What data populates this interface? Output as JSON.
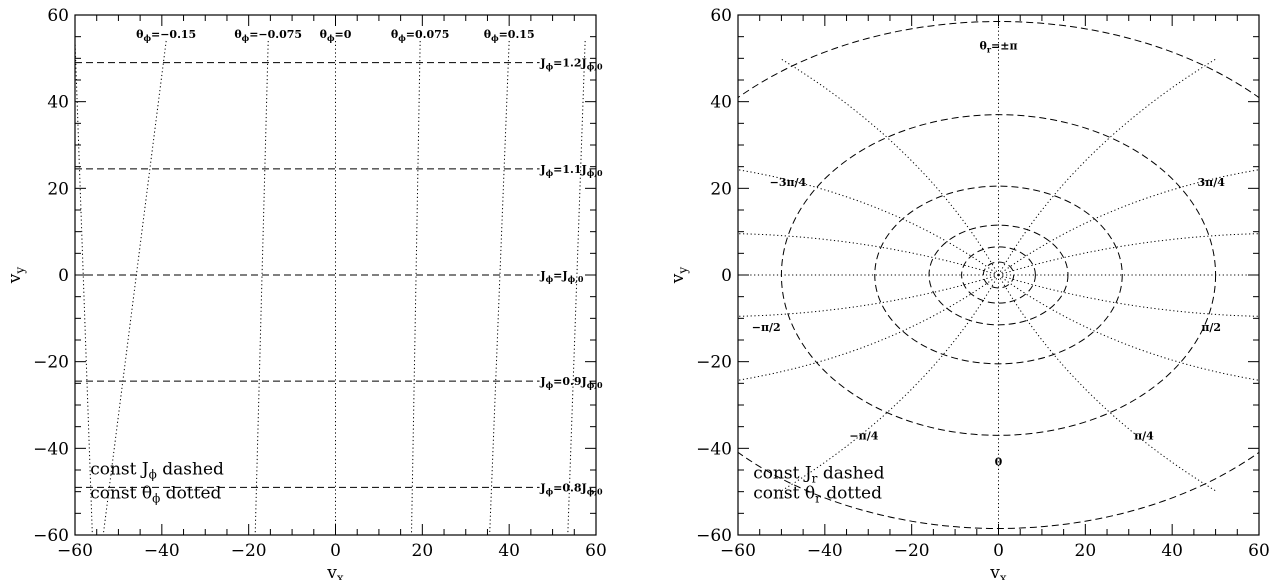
{
  "chart_data": [
    {
      "type": "line",
      "panel": "left",
      "title": "",
      "xlabel_main": "v",
      "xlabel_sub": "x",
      "ylabel_main": "v",
      "ylabel_sub": "y",
      "xlim": [
        -60,
        60
      ],
      "ylim": [
        -60,
        60
      ],
      "xticks": [
        -60,
        -40,
        -20,
        0,
        20,
        40,
        60
      ],
      "yticks": [
        -60,
        -40,
        -20,
        0,
        20,
        40,
        60
      ],
      "grid": false,
      "dashed_series": [
        {
          "label_main": "J",
          "label_sub": "ϕ",
          "label_mid": "=1.2J",
          "label_sub2": "ϕ,0",
          "y": 49
        },
        {
          "label_main": "J",
          "label_sub": "ϕ",
          "label_mid": "=1.1J",
          "label_sub2": "ϕ,0",
          "y": 24.5
        },
        {
          "label_main": "J",
          "label_sub": "ϕ",
          "label_mid": "=J",
          "label_sub2": "ϕ,0",
          "y": 0
        },
        {
          "label_main": "J",
          "label_sub": "ϕ",
          "label_mid": "=0.9J",
          "label_sub2": "ϕ,0",
          "y": -24.5
        },
        {
          "label_main": "J",
          "label_sub": "ϕ",
          "label_mid": "=0.8J",
          "label_sub2": "ϕ,0",
          "y": -49
        }
      ],
      "dotted_series": [
        {
          "label_main": "θ",
          "label_sub": "ϕ",
          "label_mid": "=−0.15",
          "x_top": -39,
          "x_bottom": -53.5
        },
        {
          "label_main": "θ",
          "label_sub": "ϕ",
          "label_mid": "=−0.075",
          "x_top": -15.5,
          "x_bottom": -18.5
        },
        {
          "label_main": "θ",
          "label_sub": "ϕ",
          "label_mid": "=0",
          "x_top": 0,
          "x_bottom": 0
        },
        {
          "label_main": "θ",
          "label_sub": "ϕ",
          "label_mid": "=0.075",
          "x_top": 19.5,
          "x_bottom": 17.5
        },
        {
          "label_main": "θ",
          "label_sub": "ϕ",
          "label_mid": "=0.15",
          "x_top": 40,
          "x_bottom": 35.5
        },
        {
          "label_main": "",
          "label_sub": "",
          "label_mid": "",
          "x_top": -60,
          "x_bottom": -56
        },
        {
          "label_main": "",
          "label_sub": "",
          "label_mid": "",
          "x_top": 57.5,
          "x_bottom": 53.5
        }
      ],
      "legend": [
        {
          "text_main": "const J",
          "text_sub": "ϕ",
          "text_rest": "dashed"
        },
        {
          "text_main": "const θ",
          "text_sub": "ϕ",
          "text_rest": "dotted"
        }
      ]
    },
    {
      "type": "line",
      "panel": "right",
      "title": "",
      "xlabel_main": "v",
      "xlabel_sub": "x",
      "ylabel_main": "v",
      "ylabel_sub": "y",
      "xlim": [
        -60,
        60
      ],
      "ylim": [
        -60,
        60
      ],
      "xticks": [
        -60,
        -40,
        -20,
        0,
        20,
        40,
        60
      ],
      "yticks": [
        -60,
        -40,
        -20,
        0,
        20,
        40,
        60
      ],
      "grid": false,
      "dashed_ellipses": [
        {
          "a": 3.5,
          "b": 3.0
        },
        {
          "a": 8.5,
          "b": 6.5
        },
        {
          "a": 16,
          "b": 11.5
        },
        {
          "a": 28.5,
          "b": 20.5
        },
        {
          "a": 50,
          "b": 37
        },
        {
          "a": 84,
          "b": 58.5
        }
      ],
      "dotted_angle_labels": [
        {
          "text": "θ",
          "sub": "r",
          "rest": "=±π",
          "x": 0,
          "y": 53
        },
        {
          "text": "3π/4",
          "x": 49,
          "y": 21.5
        },
        {
          "text": "−3π/4",
          "x": -48.5,
          "y": 21.5
        },
        {
          "text": "π/2",
          "x": 49,
          "y": -12
        },
        {
          "text": "−π/2",
          "x": -53.5,
          "y": -12
        },
        {
          "text": "π/4",
          "x": 33.5,
          "y": -37
        },
        {
          "text": "−π/4",
          "x": -31,
          "y": -37
        },
        {
          "text": "0",
          "x": 0,
          "y": -43
        }
      ],
      "legend": [
        {
          "text_main": "const J",
          "text_sub": "r",
          "text_rest": "dashed"
        },
        {
          "text_main": "const θ",
          "text_sub": "r",
          "text_rest": "dotted"
        }
      ]
    }
  ]
}
